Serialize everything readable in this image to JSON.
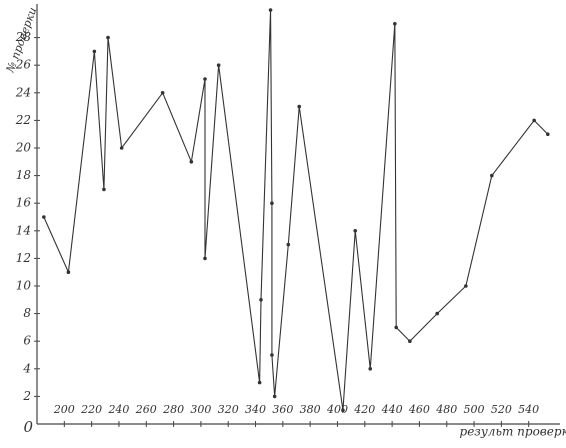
{
  "chart_data": {
    "type": "line",
    "x_label": "результ проверки",
    "y_label": "№ проверки",
    "origin_label": "0",
    "xlim": [
      180,
      560
    ],
    "ylim": [
      0,
      30
    ],
    "xticks": [
      200,
      220,
      240,
      260,
      280,
      300,
      320,
      340,
      360,
      380,
      400,
      420,
      440,
      460,
      480,
      500,
      520,
      540
    ],
    "yticks": [
      2,
      4,
      6,
      8,
      10,
      12,
      14,
      16,
      18,
      20,
      22,
      24,
      26,
      28
    ],
    "color": "#333333",
    "series": [
      {
        "name": "проверки",
        "color": "#333333",
        "x": [
          185,
          203,
          222,
          229,
          232,
          242,
          272,
          293,
          303,
          303,
          313,
          343,
          344,
          351,
          352,
          352,
          354,
          364,
          372,
          404,
          413,
          424,
          442,
          443,
          453,
          473,
          494,
          513,
          544,
          554
        ],
        "values": [
          15,
          11,
          27,
          17,
          28,
          20,
          24,
          19,
          25,
          12,
          26,
          3,
          9,
          30,
          16,
          5,
          2,
          13,
          23,
          1,
          14,
          4,
          29,
          7,
          6,
          8,
          10,
          18,
          22,
          21
        ]
      }
    ]
  }
}
